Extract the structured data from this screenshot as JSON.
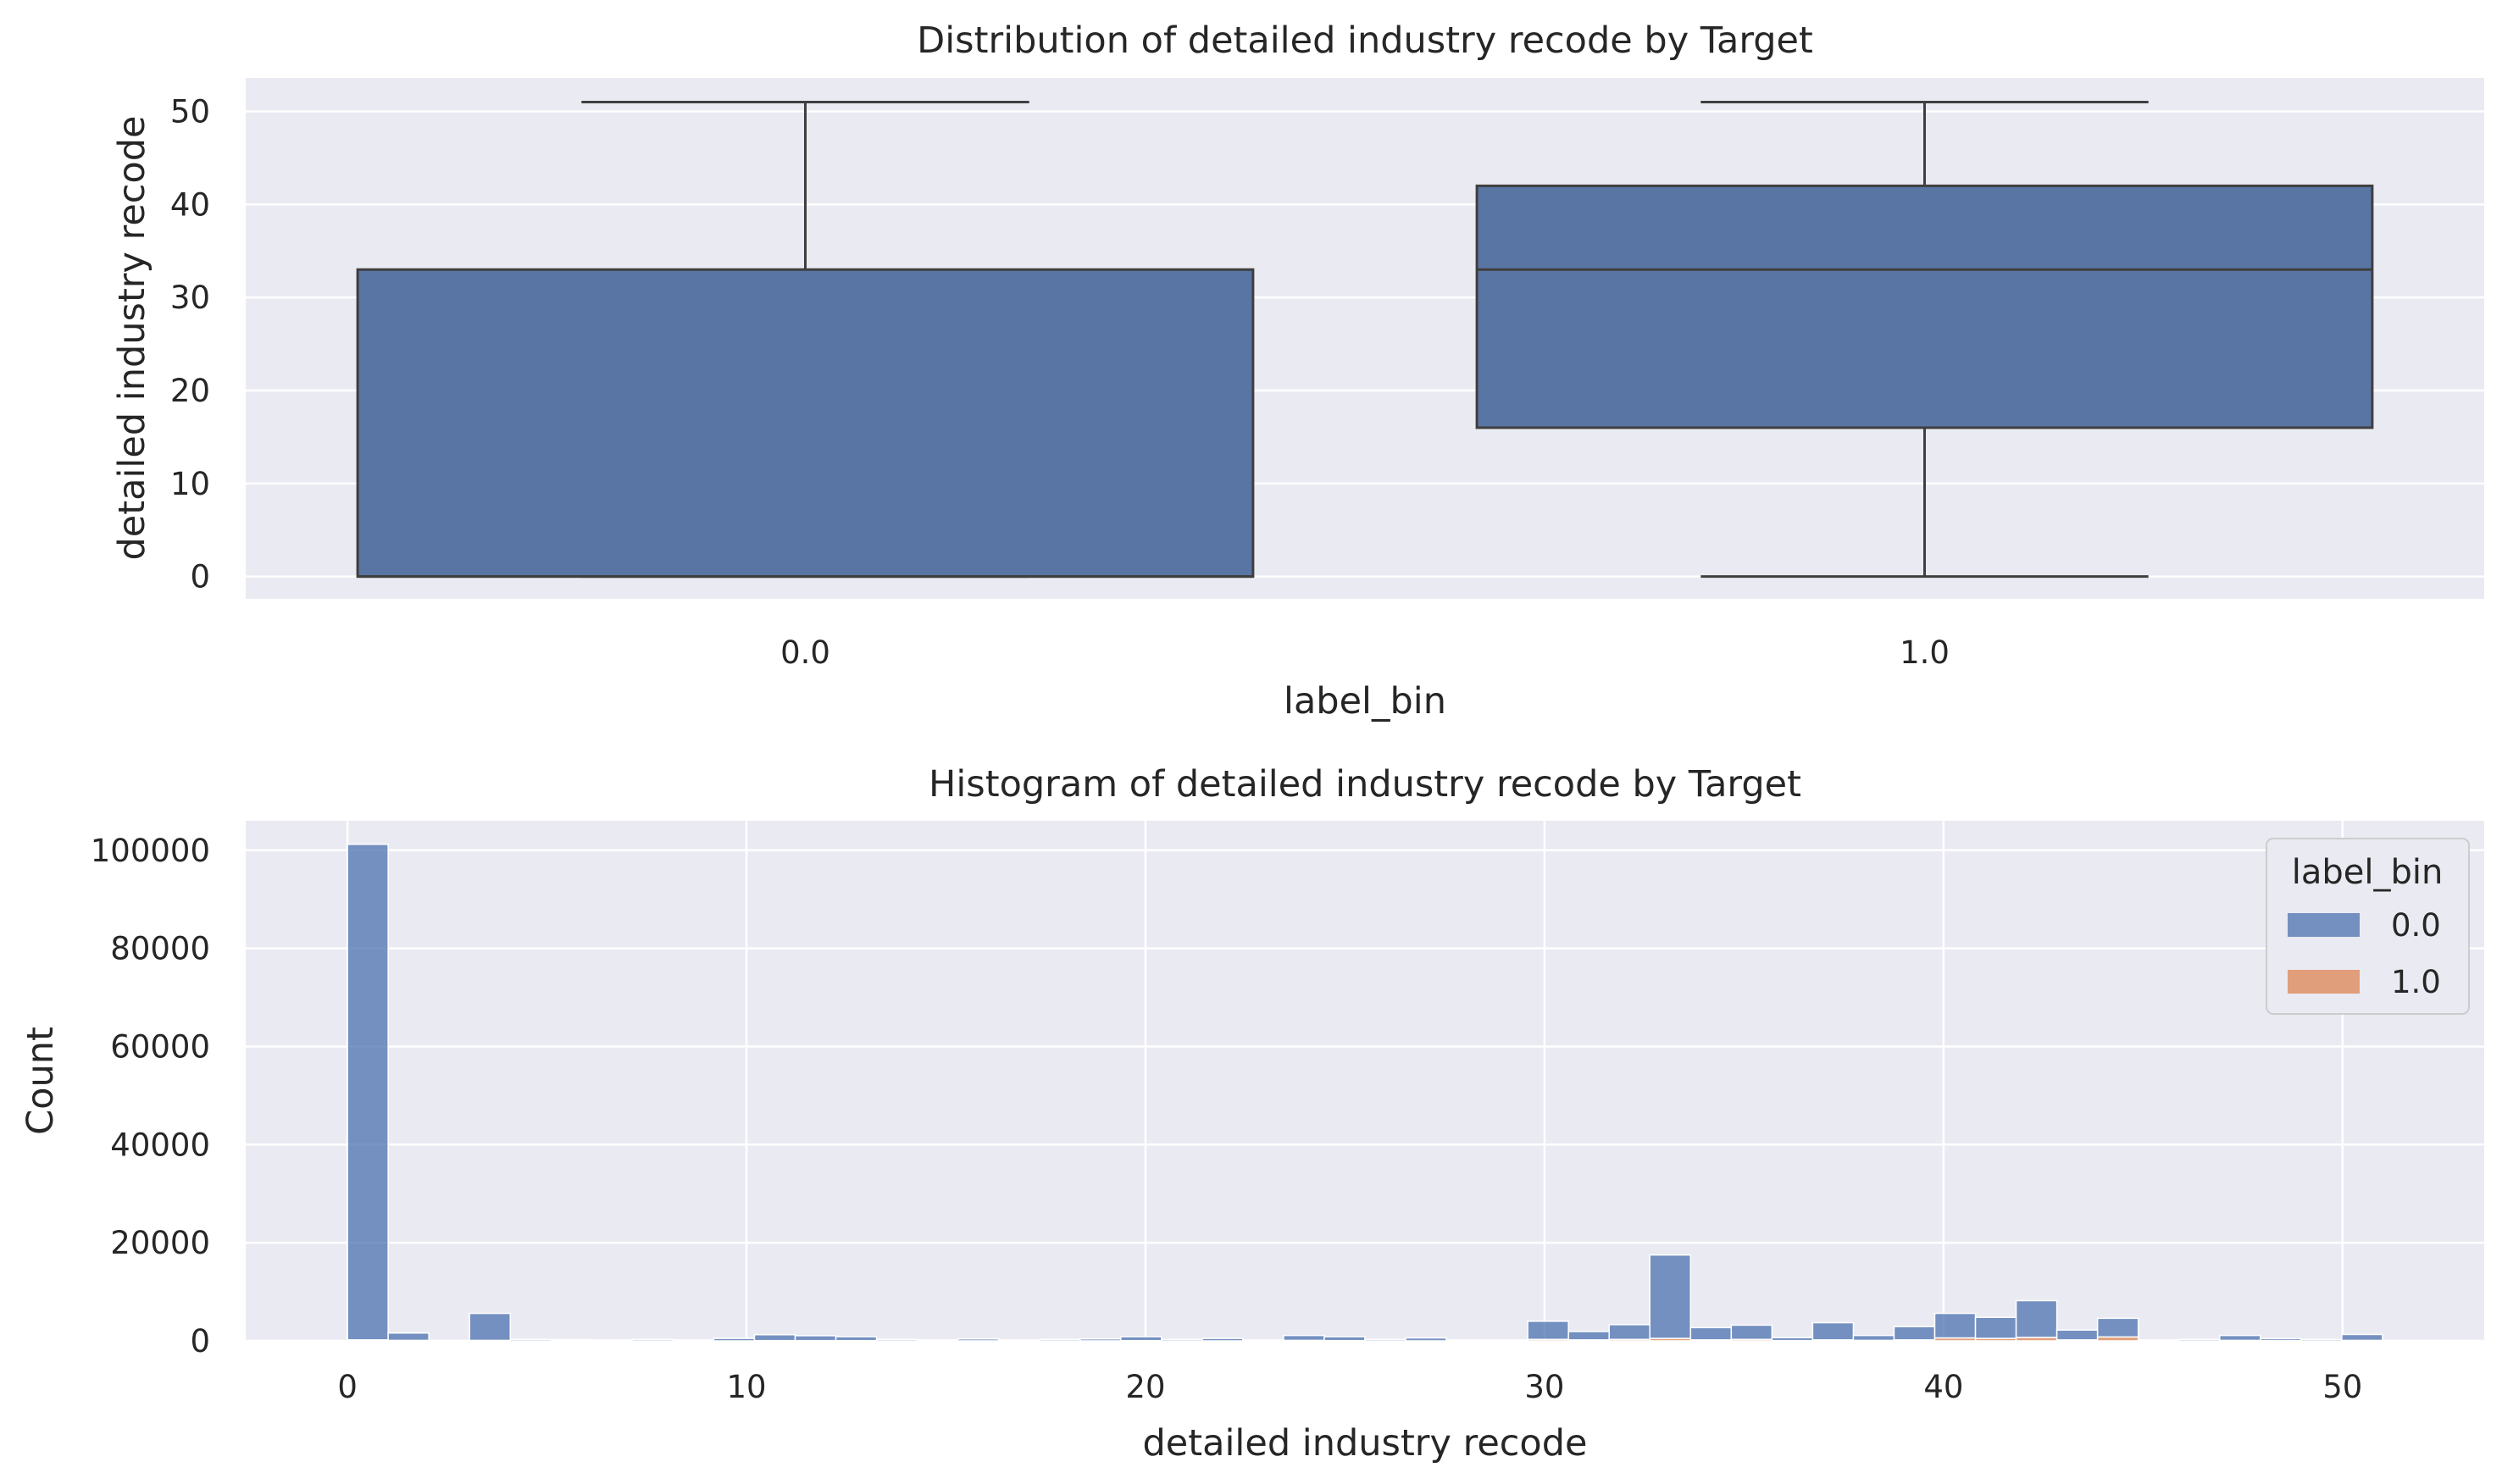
{
  "chart_data": [
    {
      "type": "box",
      "title": "Distribution of detailed industry recode by Target",
      "xlabel": "label_bin",
      "ylabel": "detailed industry recode",
      "categories": [
        "0.0",
        "1.0"
      ],
      "ylim": [
        -2.4,
        53.6
      ],
      "yticks": [
        "0",
        "10",
        "20",
        "30",
        "40",
        "50"
      ],
      "boxes": [
        {
          "category": "0.0",
          "whisker_low": 0,
          "q1": 0,
          "median": 0,
          "q3": 33,
          "whisker_high": 51
        },
        {
          "category": "1.0",
          "whisker_low": 0,
          "q1": 16,
          "median": 33,
          "q3": 42,
          "whisker_high": 51
        }
      ],
      "color": "#5975a4",
      "grid": true
    },
    {
      "type": "histogram",
      "title": "Histogram of detailed industry recode by Target",
      "xlabel": "detailed industry recode",
      "ylabel": "Count",
      "xlim": [
        -2.55,
        53.55
      ],
      "ylim": [
        0,
        106000
      ],
      "xticks": [
        "0",
        "10",
        "20",
        "30",
        "40",
        "50"
      ],
      "yticks": [
        "0",
        "20000",
        "40000",
        "60000",
        "80000",
        "100000"
      ],
      "bin_width": 1.02,
      "bin_start": 0,
      "series": [
        {
          "name": "0.0",
          "color": "#4c72b0",
          "values": [
            101000,
            1500,
            100,
            5500,
            300,
            250,
            200,
            300,
            200,
            500,
            1200,
            1000,
            800,
            300,
            200,
            400,
            200,
            300,
            400,
            800,
            300,
            500,
            200,
            1000,
            800,
            300,
            600,
            200,
            200,
            3700,
            1700,
            3000,
            17000,
            2500,
            2900,
            600,
            3500,
            1000,
            2700,
            5000,
            4300,
            7500,
            2000,
            3800,
            200,
            300,
            1000,
            400,
            300,
            1200
          ]
        },
        {
          "name": "1.0",
          "color": "#dd8452",
          "values": [
            200,
            100,
            0,
            100,
            0,
            0,
            0,
            0,
            0,
            0,
            50,
            50,
            50,
            0,
            0,
            0,
            0,
            0,
            0,
            50,
            0,
            0,
            0,
            100,
            50,
            0,
            0,
            0,
            0,
            300,
            200,
            300,
            500,
            200,
            300,
            50,
            200,
            100,
            200,
            600,
            500,
            700,
            200,
            800,
            0,
            0,
            100,
            50,
            0,
            100
          ]
        }
      ],
      "legend": {
        "title": "label_bin",
        "placement": "top-right"
      },
      "grid": true
    }
  ]
}
